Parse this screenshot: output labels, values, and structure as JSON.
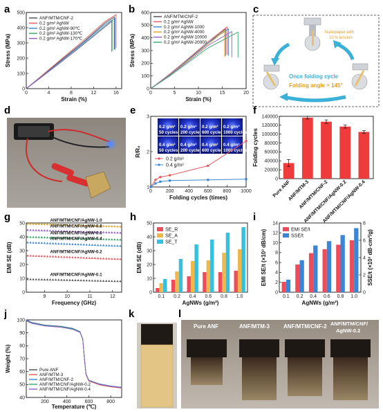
{
  "panel_letters": [
    "a",
    "b",
    "c",
    "d",
    "e",
    "f",
    "g",
    "h",
    "i",
    "j",
    "k",
    "l"
  ],
  "chart_data": [
    {
      "panel": "a",
      "type": "line",
      "xlabel": "Strain (%)",
      "ylabel": "Stress (MPa)",
      "xlim": [
        0,
        17
      ],
      "ylim": [
        0,
        500
      ],
      "xticks": [
        "0",
        "4",
        "8",
        "12",
        "16"
      ],
      "yticks": [
        "0",
        "100",
        "200",
        "300",
        "400",
        "500"
      ],
      "series": [
        {
          "name": "ANF/MTM/CNF-2",
          "color": "#4a4a4a",
          "x": [
            0,
            2,
            6,
            10,
            14,
            15.7
          ],
          "y": [
            0,
            60,
            180,
            300,
            430,
            470
          ]
        },
        {
          "name": "0.2 g/m² AgNW",
          "color": "#e8555b",
          "x": [
            0,
            2,
            6,
            10,
            14,
            16.0
          ],
          "y": [
            0,
            62,
            186,
            310,
            440,
            486
          ]
        },
        {
          "name": "0.2 g/m² AgNW-90℃",
          "color": "#3a86d4",
          "x": [
            0,
            2,
            6,
            10,
            14,
            15.8
          ],
          "y": [
            0,
            58,
            176,
            296,
            420,
            462
          ]
        },
        {
          "name": "0.2 g/m² AgNW-130℃",
          "color": "#36a86b",
          "x": [
            0,
            2,
            6,
            10,
            14,
            15.4
          ],
          "y": [
            0,
            56,
            170,
            288,
            410,
            448
          ]
        },
        {
          "name": "0.2 g/m² AgNW-170℃",
          "color": "#8e5cc4",
          "x": [
            0,
            2,
            6,
            10,
            14,
            15.2
          ],
          "y": [
            0,
            55,
            168,
            284,
            404,
            440
          ]
        }
      ]
    },
    {
      "panel": "b",
      "type": "line",
      "xlabel": "Strain (%)",
      "ylabel": "Stress (MPa)",
      "xlim": [
        0,
        20
      ],
      "ylim": [
        0,
        600
      ],
      "xticks": [
        "0",
        "5",
        "10",
        "15",
        "20"
      ],
      "yticks": [
        "0",
        "100",
        "200",
        "300",
        "400",
        "500",
        "600"
      ],
      "series": [
        {
          "name": "ANF/MTM/CNF-2",
          "color": "#4a4a4a",
          "x": [
            0,
            4,
            8,
            12,
            15.7
          ],
          "y": [
            0,
            110,
            230,
            360,
            470
          ]
        },
        {
          "name": "0.2 g/m² AgNW",
          "color": "#e8555b",
          "x": [
            0,
            4,
            8,
            12,
            16.0
          ],
          "y": [
            0,
            115,
            240,
            370,
            486
          ]
        },
        {
          "name": "0.2 g/m² AgNW-1000",
          "color": "#3a86d4",
          "x": [
            0,
            4,
            8,
            12,
            16.3
          ],
          "y": [
            0,
            112,
            235,
            360,
            470
          ]
        },
        {
          "name": "0.2 g/m² AgNW-4000",
          "color": "#e0a020",
          "x": [
            0,
            4,
            8,
            12,
            15.5
          ],
          "y": [
            0,
            108,
            228,
            350,
            455
          ]
        },
        {
          "name": "0.2 g/m² AgNW-10000",
          "color": "#8e5cc4",
          "x": [
            0,
            4,
            8,
            12,
            17.0
          ],
          "y": [
            0,
            105,
            220,
            340,
            450
          ]
        },
        {
          "name": "0.2 g/m² AgNW-20000",
          "color": "#36a86b",
          "x": [
            0,
            4,
            8,
            12,
            18.3
          ],
          "y": [
            0,
            100,
            210,
            320,
            445
          ]
        }
      ]
    },
    {
      "panel": "e",
      "type": "line",
      "xlabel": "Folding cycles (times)",
      "ylabel": "R/R₀",
      "xlim": [
        0,
        1000
      ],
      "ylim": [
        1,
        3
      ],
      "xticks": [
        "0",
        "200",
        "400",
        "600",
        "800",
        "1000"
      ],
      "yticks": [
        "1",
        "2",
        "3"
      ],
      "series": [
        {
          "name": "0.2 g/m²",
          "color": "#e8555b",
          "x": [
            0,
            50,
            100,
            200,
            600,
            1000
          ],
          "y": [
            1.0,
            1.2,
            1.28,
            1.33,
            1.6,
            2.3
          ]
        },
        {
          "name": "0.4 g/m²",
          "color": "#3a86d4",
          "x": [
            0,
            50,
            100,
            200,
            600,
            1000
          ],
          "y": [
            1.0,
            1.1,
            1.15,
            1.18,
            1.2,
            1.22
          ]
        }
      ],
      "inset_labels": [
        {
          "density": "0.2 g/m²",
          "cycles": "50 cycles"
        },
        {
          "density": "0.2 g/m²",
          "cycles": "200 cycles"
        },
        {
          "density": "0.2 g/m²",
          "cycles": "600 cycles"
        },
        {
          "density": "0.2 g/m²",
          "cycles": "1000 cycles"
        },
        {
          "density": "0.4 g/m²",
          "cycles": "50 cycles"
        },
        {
          "density": "0.4 g/m²",
          "cycles": "200 cycles"
        },
        {
          "density": "0.4 g/m²",
          "cycles": "600 cycles"
        },
        {
          "density": "0.4 g/m²",
          "cycles": "1000 cycles"
        }
      ]
    },
    {
      "panel": "f",
      "type": "bar",
      "ylabel": "Folding cycles",
      "ylim": [
        0,
        140000
      ],
      "yticks": [
        "0",
        "20000",
        "40000",
        "60000",
        "80000",
        "100000",
        "120000",
        "140000"
      ],
      "categories": [
        "Pure ANF",
        "ANF/MTM-3",
        "ANF/MTM/CNF-2",
        "ANF/MTM/CNF/AgNW-0.2",
        "ANF/MTM/CNF/AgNW-0.4"
      ],
      "values": [
        35000,
        137000,
        128000,
        117000,
        105000
      ],
      "errors": [
        8000,
        3000,
        4000,
        3500,
        3000
      ],
      "color": "#ee3b3b"
    },
    {
      "panel": "g",
      "type": "scatter",
      "xlabel": "Frequency (GHz)",
      "ylabel": "EMI SE (dB)",
      "xlim": [
        8.2,
        12.4
      ],
      "ylim": [
        0,
        50
      ],
      "xticks": [
        "9",
        "10",
        "11",
        "12"
      ],
      "yticks": [
        "0",
        "10",
        "20",
        "30",
        "40",
        "50"
      ],
      "series": [
        {
          "name": "ANF/MTM/CNF/AgNW-1.0",
          "color": "#e0a020",
          "start": 49.5,
          "end": 47.5
        },
        {
          "name": "ANF/MTM/CNF/AgNW-0.8",
          "color": "#8e5cc4",
          "start": 45.0,
          "end": 43.0
        },
        {
          "name": "ANF/MTM/CNF/AgNW-0.6",
          "color": "#36a86b",
          "start": 40.0,
          "end": 38.0
        },
        {
          "name": "ANF/MTM/CNF/AgNW-0.4",
          "color": "#3a86d4",
          "start": 36.0,
          "end": 33.5
        },
        {
          "name": "ANF/MTM/CNF/AgNW-0.2",
          "color": "#e8555b",
          "start": 26.5,
          "end": 24.0
        },
        {
          "name": "ANF/MTM/CNF/AgNW-0.1",
          "color": "#555555",
          "start": 9.5,
          "end": 8.0
        }
      ]
    },
    {
      "panel": "h",
      "type": "bar",
      "xlabel": "AgNWs (g/m²)",
      "ylabel": "EMI SE (dB)",
      "ylim": [
        0,
        50
      ],
      "yticks": [
        "0",
        "10",
        "20",
        "30",
        "40",
        "50"
      ],
      "categories": [
        "0.1",
        "0.2",
        "0.4",
        "0.6",
        "0.8",
        "1.0"
      ],
      "series": [
        {
          "name": "SE_R",
          "color": "#ee4b5b",
          "values": [
            3,
            9,
            11.5,
            14.5,
            14.5,
            15.5
          ]
        },
        {
          "name": "SE_A",
          "color": "#f0b84a",
          "values": [
            6.5,
            15,
            22.5,
            23,
            28.5,
            31
          ]
        },
        {
          "name": "SE_T",
          "color": "#35c0e0",
          "values": [
            9.5,
            24,
            34.5,
            38,
            43,
            47
          ]
        }
      ]
    },
    {
      "panel": "i",
      "type": "bar",
      "xlabel": "AgNWs (g/m²)",
      "ylabel": "EMI SE/t (×10³ dB/cm)",
      "ylabel_right": "SSE/t (×10³ dB·cm²/g)",
      "ylim": [
        0,
        14
      ],
      "ylim_right": [
        0,
        8
      ],
      "yticks": [
        "0",
        "2",
        "4",
        "6",
        "8",
        "10",
        "12",
        "14"
      ],
      "yticks_right": [
        "0",
        "2",
        "4",
        "6",
        "8"
      ],
      "categories": [
        "0.1",
        "0.2",
        "0.4",
        "0.6",
        "0.8",
        "1.0"
      ],
      "series": [
        {
          "name": "EMI SE/t",
          "color": "#ee4b5b",
          "values": [
            2.1,
            5.6,
            7.9,
            8.7,
            9.6,
            10.5
          ]
        },
        {
          "name": "SSE/t",
          "color": "#3a86d4",
          "axis": "right",
          "values": [
            1.45,
            3.7,
            5.4,
            5.9,
            6.6,
            7.4
          ]
        }
      ]
    },
    {
      "panel": "j",
      "type": "line",
      "xlabel": "Temperature (℃)",
      "ylabel": "Weight (%)",
      "xlim": [
        30,
        900
      ],
      "ylim": [
        40,
        100
      ],
      "xticks": [
        "200",
        "400",
        "600",
        "800"
      ],
      "yticks": [
        "40",
        "50",
        "60",
        "70",
        "80",
        "90",
        "100"
      ],
      "series": [
        {
          "name": "Pure ANF",
          "color": "#4a4a4a",
          "offset": 0
        },
        {
          "name": "ANF/MTM-3",
          "color": "#e8555b",
          "offset": 1.2
        },
        {
          "name": "ANF/MTM/CNF-2",
          "color": "#3a86d4",
          "offset": 0.6
        },
        {
          "name": "ANF/MTM/CNF/AgNW-0.2",
          "color": "#36a86b",
          "offset": 1.8
        },
        {
          "name": "ANF/MTM/CNF/AgNW-0.4",
          "color": "#8e5cc4",
          "offset": 2.4
        }
      ]
    }
  ],
  "schematic_c": {
    "note": "Nanopaper with 10 N tension",
    "cycle": "Once folding cycle",
    "angle": "Folding angle = 145°"
  },
  "photos_l": {
    "labels": [
      "Pure ANF",
      "ANF/MTM-3",
      "ANF/MTM/CNF-2",
      "ANF/MTM/CNF/ AgNW-0.2"
    ]
  },
  "colors": {
    "red": "#ee3b3b",
    "blue": "#3a86d4",
    "cyan": "#35c0e0",
    "orange": "#f0b84a"
  }
}
